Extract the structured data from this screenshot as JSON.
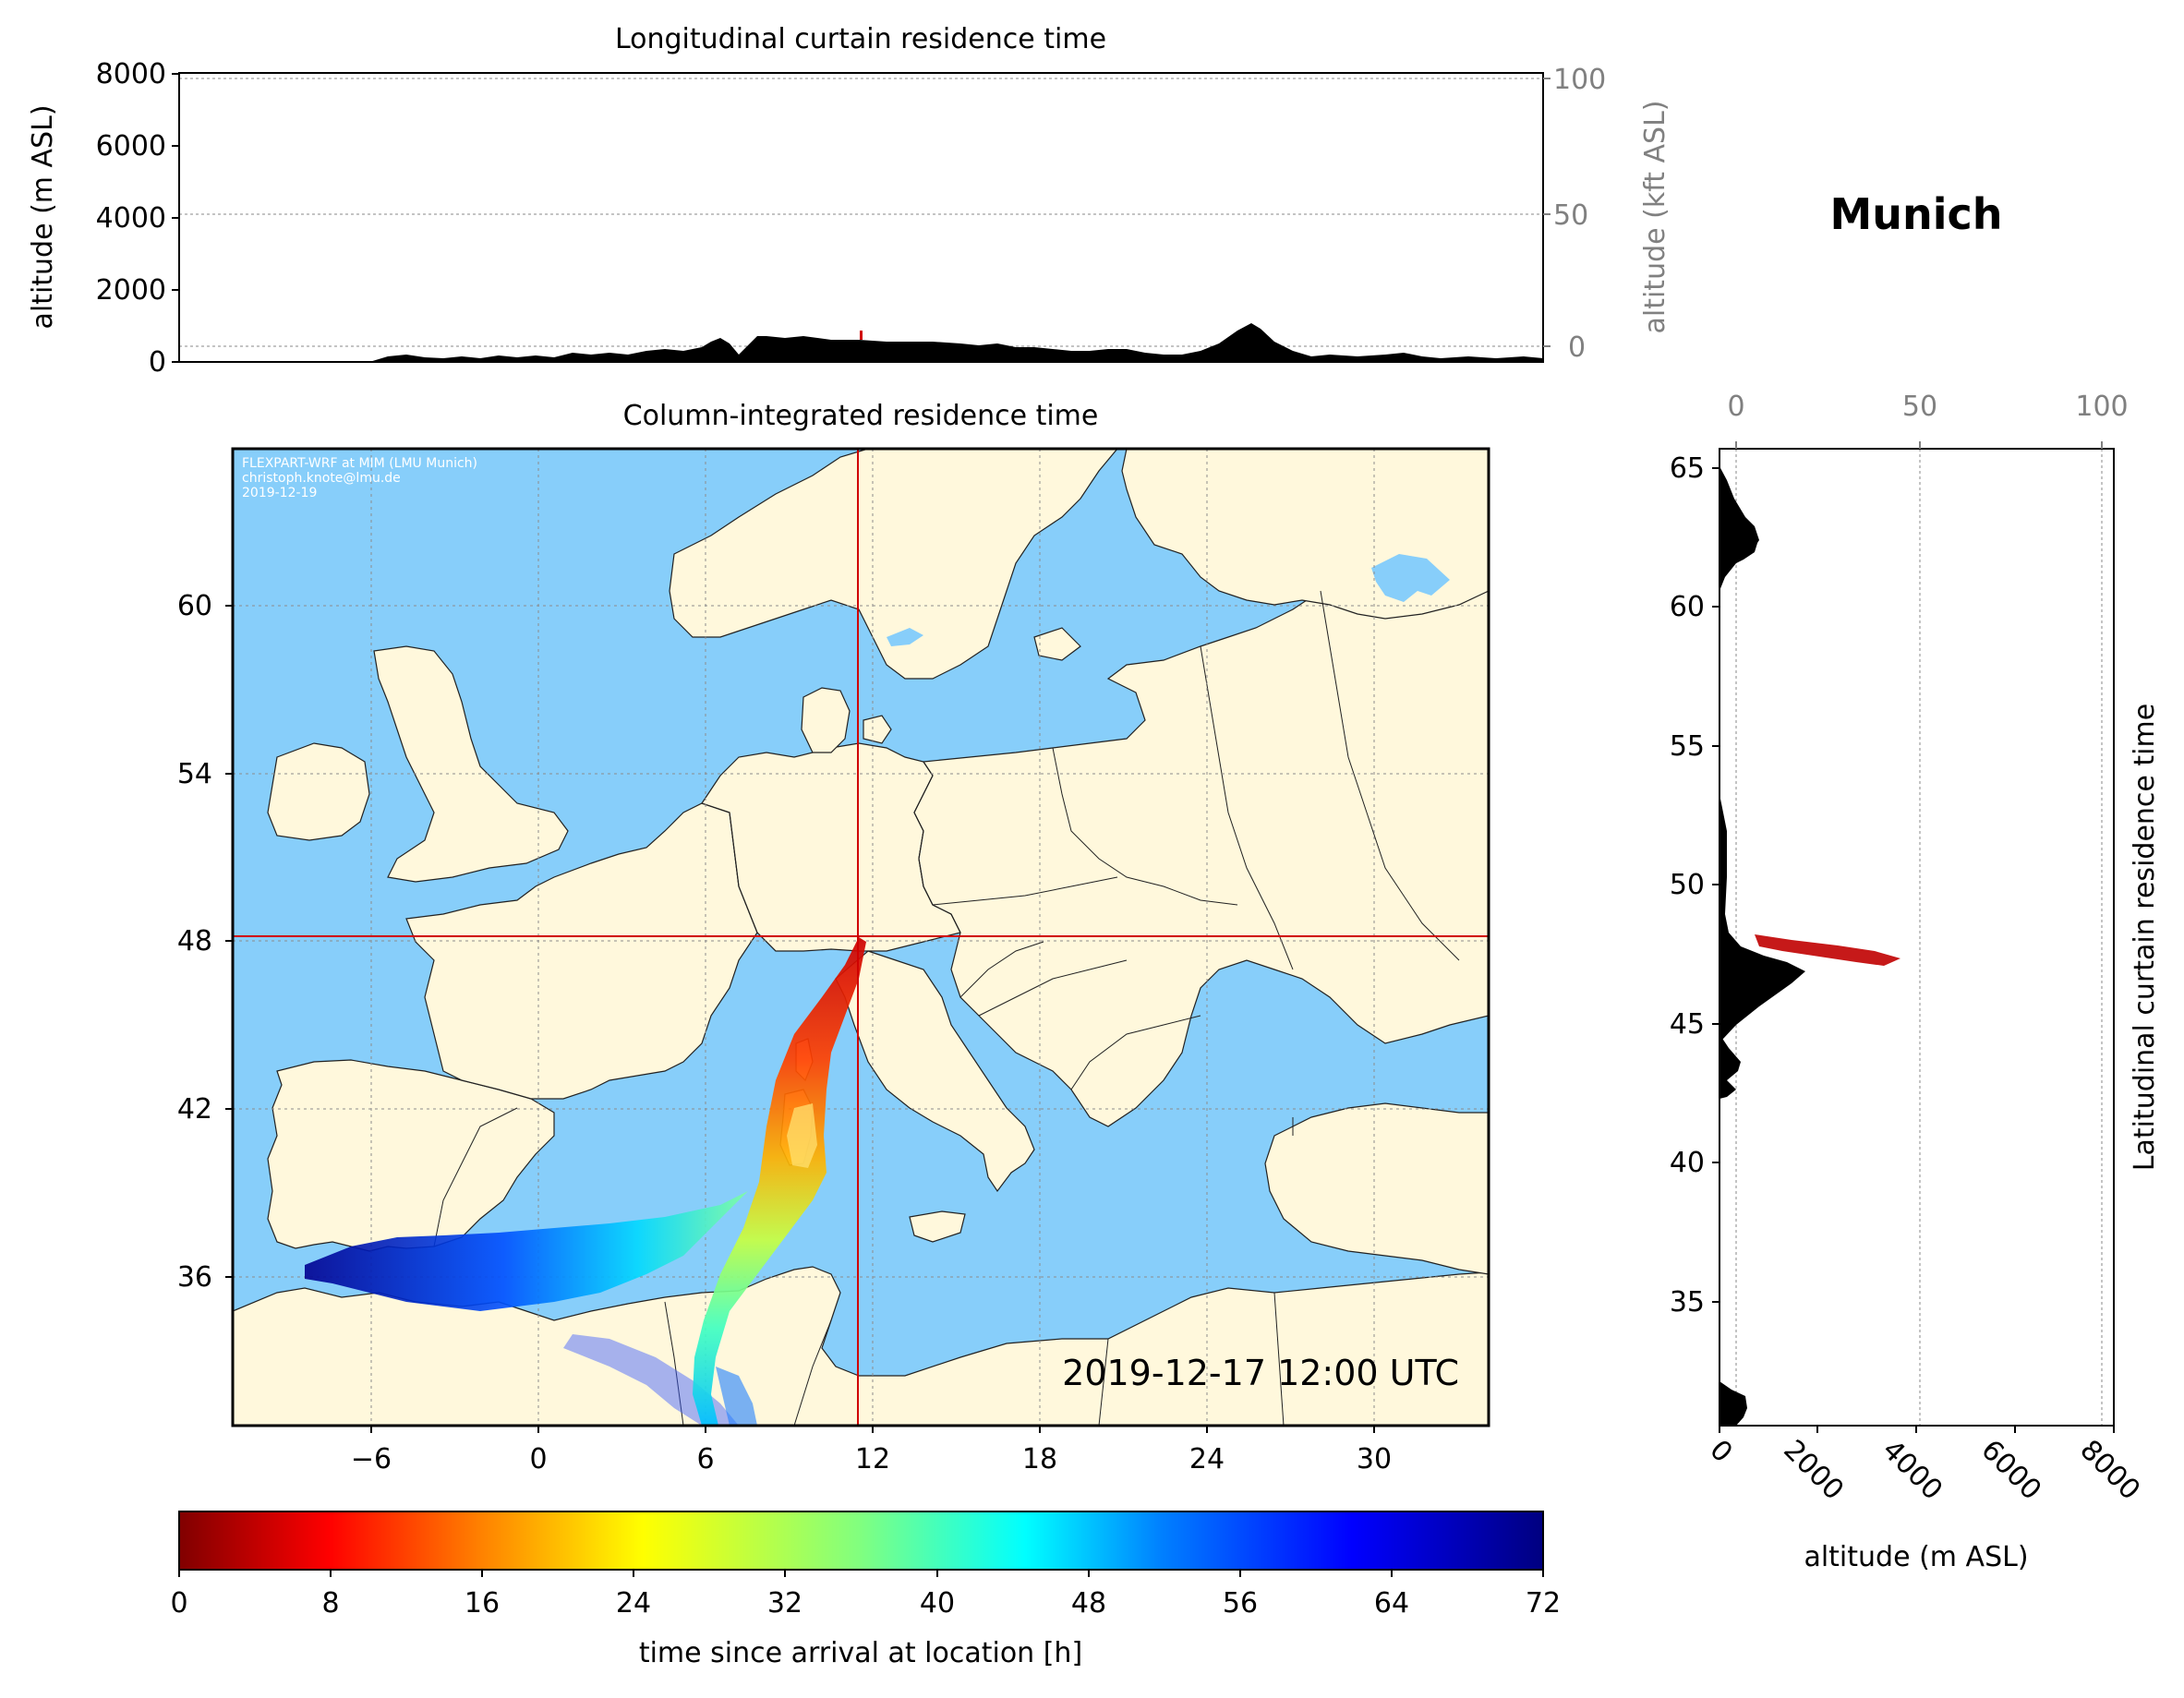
{
  "station": {
    "title": "Munich"
  },
  "top_panel": {
    "title": "Longitudinal curtain residence time",
    "ylabel": "altitude (m ASL)",
    "ylabel_right": "altitude (kft ASL)",
    "yticks": [
      "0",
      "2000",
      "4000",
      "6000",
      "8000"
    ],
    "yticks_right": [
      "0",
      "50",
      "100"
    ]
  },
  "map_panel": {
    "title": "Column-integrated residence time",
    "credit": [
      "FLEXPART-WRF at MIM (LMU Munich)",
      "christoph.knote@lmu.de",
      "2019-12-19"
    ],
    "timestamp": "2019-12-17 12:00 UTC",
    "xticks": [
      "−6",
      "0",
      "6",
      "12",
      "18",
      "24",
      "30"
    ],
    "yticks": [
      "36",
      "42",
      "48",
      "54",
      "60"
    ],
    "station_lon": 11.6,
    "station_lat": 48.1,
    "extent": {
      "lon": [
        -11,
        34
      ],
      "lat": [
        31,
        65
      ]
    }
  },
  "right_panel": {
    "ylabel": "Latitudinal curtain residence time",
    "xlabel": "altitude (m ASL)",
    "xticks": [
      "0",
      "2000",
      "4000",
      "6000",
      "8000"
    ],
    "xticks_top": [
      "0",
      "50",
      "100"
    ],
    "yticks": [
      "35",
      "40",
      "45",
      "50",
      "55",
      "60",
      "65"
    ]
  },
  "colorbar": {
    "label": "time since arrival at location [h]",
    "ticks": [
      "0",
      "8",
      "16",
      "24",
      "32",
      "40",
      "48",
      "56",
      "64",
      "72"
    ],
    "min": 0,
    "max": 72,
    "colormap": "jet_r"
  },
  "colors": {
    "ocean": "#87cefa",
    "land": "#fff8dc",
    "marker": "#d00000"
  }
}
